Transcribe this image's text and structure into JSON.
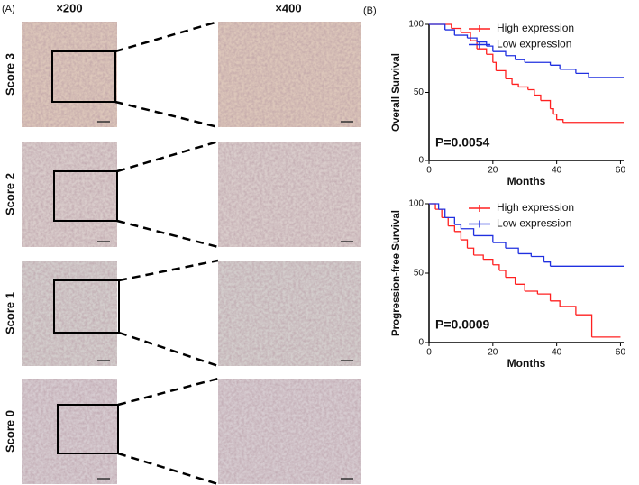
{
  "panel_a": {
    "label": "(A)",
    "magnifications": [
      "×200",
      "×400"
    ],
    "rows": [
      "Score 3",
      "Score 2",
      "Score 1",
      "Score 0"
    ]
  },
  "panel_b_label": "(B)",
  "chart_data": [
    {
      "type": "step",
      "ylabel": "Overall Survival",
      "xlabel": "Months",
      "annotation": "P=0.0054",
      "xlim": [
        0,
        61
      ],
      "ylim": [
        0,
        100
      ],
      "xticks": [
        0,
        20,
        40,
        60
      ],
      "yticks": [
        0,
        50,
        100
      ],
      "legend": "upper right",
      "series": [
        {
          "name": "High expression",
          "color": "#ff2020",
          "x": [
            0,
            7,
            10,
            13,
            15,
            18,
            20,
            21,
            24,
            26,
            28,
            31,
            33,
            35,
            38,
            39,
            40,
            42,
            61
          ],
          "values": [
            100,
            97,
            94,
            88,
            82,
            78,
            72,
            66,
            60,
            56,
            54,
            52,
            48,
            44,
            38,
            34,
            30,
            28,
            28
          ]
        },
        {
          "name": "Low expression",
          "color": "#2030e0",
          "x": [
            0,
            5,
            8,
            12,
            15,
            18,
            20,
            24,
            27,
            30,
            38,
            41,
            46,
            50,
            61
          ],
          "values": [
            100,
            96,
            92,
            90,
            87,
            84,
            80,
            77,
            74,
            72,
            70,
            67,
            64,
            61,
            61
          ]
        }
      ]
    },
    {
      "type": "step",
      "ylabel": "Progression-free Survival",
      "xlabel": "Months",
      "annotation": "P=0.0009",
      "xlim": [
        0,
        61
      ],
      "ylim": [
        0,
        100
      ],
      "xticks": [
        0,
        20,
        40,
        60
      ],
      "yticks": [
        0,
        50,
        100
      ],
      "legend": "upper right",
      "series": [
        {
          "name": "High expression",
          "color": "#ff2020",
          "x": [
            0,
            2,
            4,
            6,
            8,
            10,
            12,
            14,
            17,
            20,
            22,
            24,
            27,
            30,
            34,
            38,
            41,
            46,
            51,
            60
          ],
          "values": [
            100,
            96,
            90,
            84,
            80,
            74,
            68,
            63,
            60,
            56,
            52,
            47,
            42,
            37,
            35,
            30,
            26,
            20,
            4,
            4
          ]
        },
        {
          "name": "Low expression",
          "color": "#2030e0",
          "x": [
            0,
            3,
            5,
            8,
            10,
            14,
            20,
            24,
            28,
            32,
            36,
            38,
            61
          ],
          "values": [
            100,
            96,
            90,
            85,
            82,
            77,
            72,
            68,
            64,
            62,
            58,
            55,
            55
          ]
        }
      ]
    }
  ]
}
